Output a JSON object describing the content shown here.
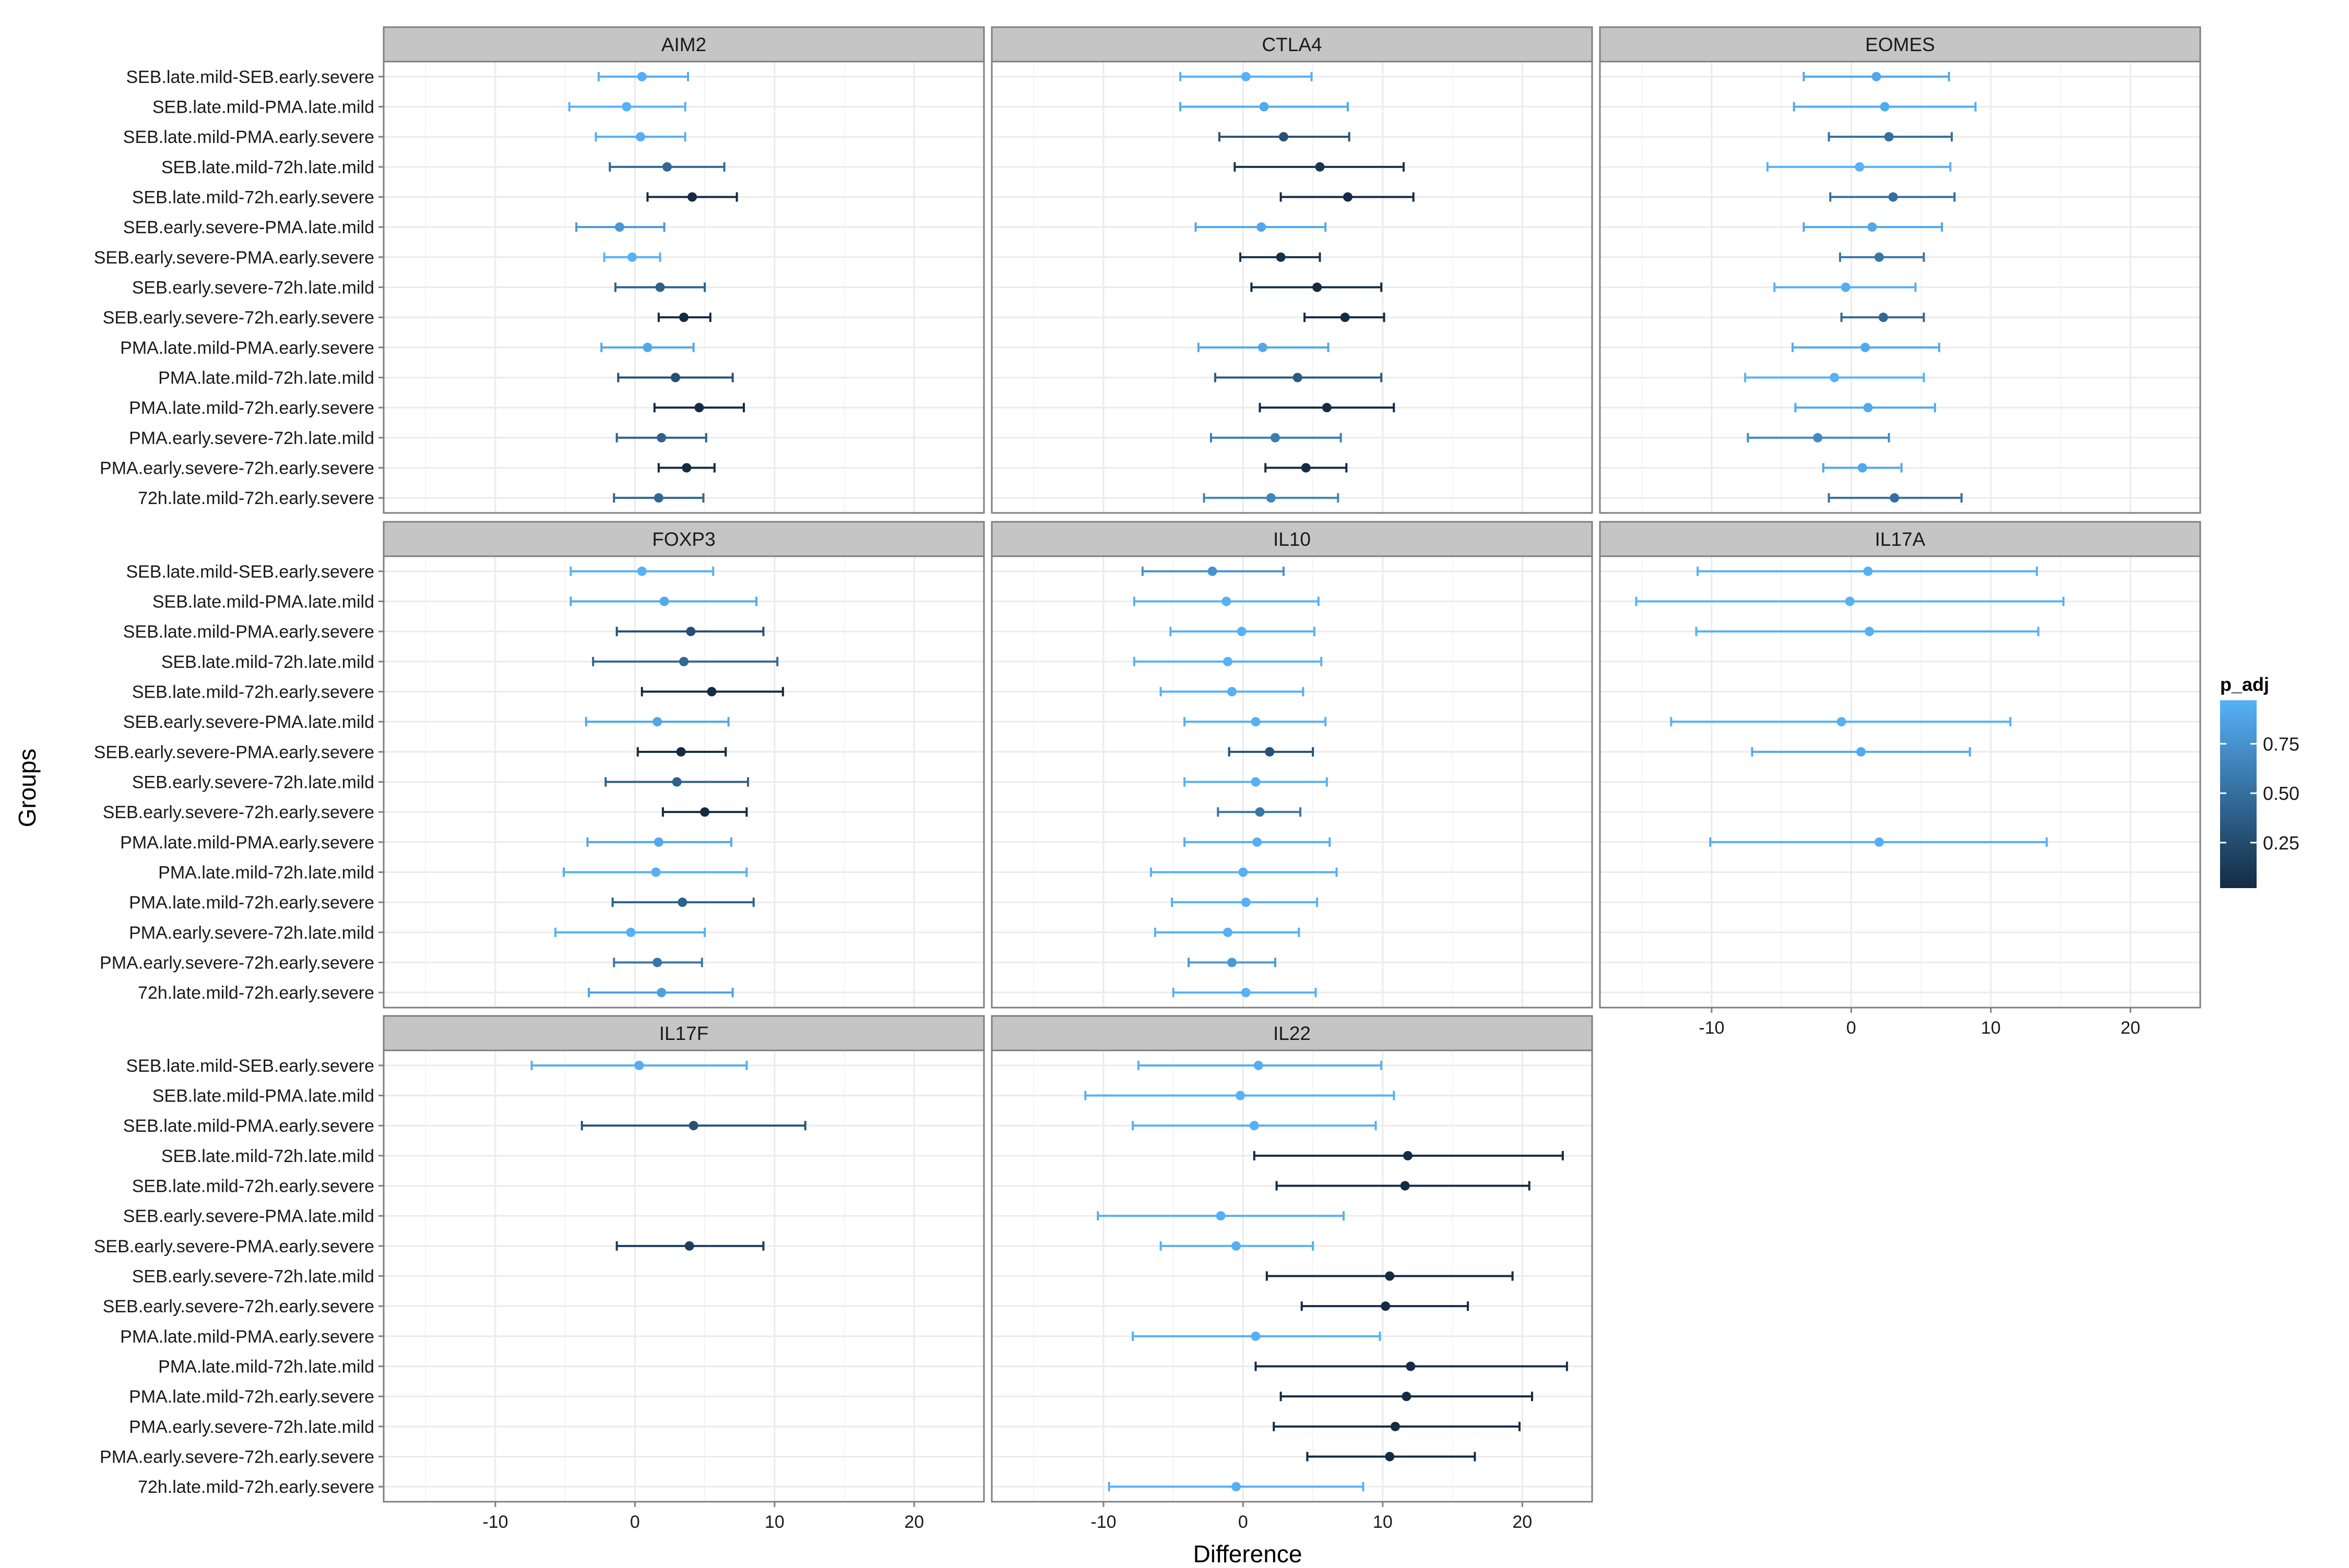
{
  "chart_data": {
    "type": "dotplot-errorbar-facets",
    "xlabel": "Difference",
    "ylabel": "Groups",
    "xlim": [
      -18,
      25
    ],
    "xticks": [
      -10,
      0,
      10,
      20
    ],
    "grid": true,
    "facet_layout": {
      "columns": 3,
      "rows": 3
    },
    "groups": [
      "SEB.late.mild-SEB.early.severe",
      "SEB.late.mild-PMA.late.mild",
      "SEB.late.mild-PMA.early.severe",
      "SEB.late.mild-72h.late.mild",
      "SEB.late.mild-72h.early.severe",
      "SEB.early.severe-PMA.late.mild",
      "SEB.early.severe-PMA.early.severe",
      "SEB.early.severe-72h.late.mild",
      "SEB.early.severe-72h.early.severe",
      "PMA.late.mild-PMA.early.severe",
      "PMA.late.mild-72h.late.mild",
      "PMA.late.mild-72h.early.severe",
      "PMA.early.severe-72h.late.mild",
      "PMA.early.severe-72h.early.severe",
      "72h.late.mild-72h.early.severe"
    ],
    "legend": {
      "title": "p_adj",
      "position": "right",
      "ticks": [
        "0.25",
        "0.50",
        "0.75"
      ],
      "tick_values": [
        0.25,
        0.5,
        0.75
      ],
      "range": [
        0.02,
        0.97
      ],
      "color_low": "#132B43",
      "color_high": "#56B1F7"
    },
    "panels": [
      {
        "name": "AIM2",
        "data": [
          {
            "diff": 0.5,
            "lwr": -2.6,
            "upr": 3.8,
            "p": 0.95
          },
          {
            "diff": -0.6,
            "lwr": -4.7,
            "upr": 3.6,
            "p": 0.97
          },
          {
            "diff": 0.4,
            "lwr": -2.8,
            "upr": 3.6,
            "p": 0.95
          },
          {
            "diff": 2.3,
            "lwr": -1.8,
            "upr": 6.4,
            "p": 0.45
          },
          {
            "diff": 4.1,
            "lwr": 0.9,
            "upr": 7.3,
            "p": 0.02
          },
          {
            "diff": -1.1,
            "lwr": -4.2,
            "upr": 2.1,
            "p": 0.8
          },
          {
            "diff": -0.2,
            "lwr": -2.2,
            "upr": 1.8,
            "p": 0.97
          },
          {
            "diff": 1.8,
            "lwr": -1.4,
            "upr": 5.0,
            "p": 0.4
          },
          {
            "diff": 3.5,
            "lwr": 1.7,
            "upr": 5.4,
            "p": 0.01
          },
          {
            "diff": 0.9,
            "lwr": -2.4,
            "upr": 4.2,
            "p": 0.9
          },
          {
            "diff": 2.9,
            "lwr": -1.2,
            "upr": 7.0,
            "p": 0.28
          },
          {
            "diff": 4.6,
            "lwr": 1.4,
            "upr": 7.8,
            "p": 0.02
          },
          {
            "diff": 1.9,
            "lwr": -1.3,
            "upr": 5.1,
            "p": 0.42
          },
          {
            "diff": 3.7,
            "lwr": 1.7,
            "upr": 5.7,
            "p": 0.01
          },
          {
            "diff": 1.7,
            "lwr": -1.5,
            "upr": 4.9,
            "p": 0.45
          }
        ]
      },
      {
        "name": "CTLA4",
        "data": [
          {
            "diff": 0.2,
            "lwr": -4.5,
            "upr": 4.9,
            "p": 0.97
          },
          {
            "diff": 1.5,
            "lwr": -4.5,
            "upr": 7.5,
            "p": 0.92
          },
          {
            "diff": 2.9,
            "lwr": -1.7,
            "upr": 7.6,
            "p": 0.3
          },
          {
            "diff": 5.5,
            "lwr": -0.6,
            "upr": 11.5,
            "p": 0.08
          },
          {
            "diff": 7.5,
            "lwr": 2.7,
            "upr": 12.2,
            "p": 0.01
          },
          {
            "diff": 1.3,
            "lwr": -3.4,
            "upr": 5.9,
            "p": 0.9
          },
          {
            "diff": 2.7,
            "lwr": -0.2,
            "upr": 5.5,
            "p": 0.06
          },
          {
            "diff": 5.3,
            "lwr": 0.6,
            "upr": 9.9,
            "p": 0.02
          },
          {
            "diff": 7.3,
            "lwr": 4.4,
            "upr": 10.1,
            "p": 0.01
          },
          {
            "diff": 1.4,
            "lwr": -3.2,
            "upr": 6.1,
            "p": 0.9
          },
          {
            "diff": 3.9,
            "lwr": -2.0,
            "upr": 9.9,
            "p": 0.35
          },
          {
            "diff": 6.0,
            "lwr": 1.2,
            "upr": 10.8,
            "p": 0.02
          },
          {
            "diff": 2.3,
            "lwr": -2.3,
            "upr": 7.0,
            "p": 0.6
          },
          {
            "diff": 4.5,
            "lwr": 1.6,
            "upr": 7.4,
            "p": 0.01
          },
          {
            "diff": 2.0,
            "lwr": -2.8,
            "upr": 6.8,
            "p": 0.65
          }
        ]
      },
      {
        "name": "EOMES",
        "data": [
          {
            "diff": 1.8,
            "lwr": -3.4,
            "upr": 7.0,
            "p": 0.9
          },
          {
            "diff": 2.4,
            "lwr": -4.1,
            "upr": 8.9,
            "p": 0.92
          },
          {
            "diff": 2.7,
            "lwr": -1.6,
            "upr": 7.2,
            "p": 0.5
          },
          {
            "diff": 0.6,
            "lwr": -6.0,
            "upr": 7.1,
            "p": 0.97
          },
          {
            "diff": 3.0,
            "lwr": -1.5,
            "upr": 7.4,
            "p": 0.5
          },
          {
            "diff": 1.5,
            "lwr": -3.4,
            "upr": 6.5,
            "p": 0.9
          },
          {
            "diff": 2.0,
            "lwr": -0.8,
            "upr": 5.2,
            "p": 0.55
          },
          {
            "diff": -0.4,
            "lwr": -5.5,
            "upr": 4.6,
            "p": 0.95
          },
          {
            "diff": 2.3,
            "lwr": -0.7,
            "upr": 5.2,
            "p": 0.45
          },
          {
            "diff": 1.0,
            "lwr": -4.2,
            "upr": 6.3,
            "p": 0.92
          },
          {
            "diff": -1.2,
            "lwr": -7.6,
            "upr": 5.2,
            "p": 0.97
          },
          {
            "diff": 1.2,
            "lwr": -4.0,
            "upr": 6.0,
            "p": 0.92
          },
          {
            "diff": -2.4,
            "lwr": -7.4,
            "upr": 2.7,
            "p": 0.7
          },
          {
            "diff": 0.8,
            "lwr": -2.0,
            "upr": 3.6,
            "p": 0.9
          },
          {
            "diff": 3.1,
            "lwr": -1.6,
            "upr": 7.9,
            "p": 0.5
          }
        ]
      },
      {
        "name": "FOXP3",
        "data": [
          {
            "diff": 0.5,
            "lwr": -4.6,
            "upr": 5.6,
            "p": 0.97
          },
          {
            "diff": 2.1,
            "lwr": -4.6,
            "upr": 8.7,
            "p": 0.92
          },
          {
            "diff": 4.0,
            "lwr": -1.3,
            "upr": 9.2,
            "p": 0.28
          },
          {
            "diff": 3.5,
            "lwr": -3.0,
            "upr": 10.2,
            "p": 0.45
          },
          {
            "diff": 5.5,
            "lwr": 0.5,
            "upr": 10.6,
            "p": 0.02
          },
          {
            "diff": 1.6,
            "lwr": -3.5,
            "upr": 6.7,
            "p": 0.9
          },
          {
            "diff": 3.3,
            "lwr": 0.2,
            "upr": 6.5,
            "p": 0.02
          },
          {
            "diff": 3.0,
            "lwr": -2.1,
            "upr": 8.1,
            "p": 0.4
          },
          {
            "diff": 5.0,
            "lwr": 2.0,
            "upr": 8.0,
            "p": 0.01
          },
          {
            "diff": 1.7,
            "lwr": -3.4,
            "upr": 6.9,
            "p": 0.9
          },
          {
            "diff": 1.5,
            "lwr": -5.1,
            "upr": 8.0,
            "p": 0.96
          },
          {
            "diff": 3.4,
            "lwr": -1.6,
            "upr": 8.5,
            "p": 0.4
          },
          {
            "diff": -0.3,
            "lwr": -5.7,
            "upr": 5.0,
            "p": 0.97
          },
          {
            "diff": 1.6,
            "lwr": -1.5,
            "upr": 4.8,
            "p": 0.55
          },
          {
            "diff": 1.9,
            "lwr": -3.3,
            "upr": 7.0,
            "p": 0.85
          }
        ]
      },
      {
        "name": "IL10",
        "data": [
          {
            "diff": -2.2,
            "lwr": -7.2,
            "upr": 2.9,
            "p": 0.75
          },
          {
            "diff": -1.2,
            "lwr": -7.8,
            "upr": 5.4,
            "p": 0.96
          },
          {
            "diff": -0.1,
            "lwr": -5.2,
            "upr": 5.1,
            "p": 0.97
          },
          {
            "diff": -1.1,
            "lwr": -7.8,
            "upr": 5.6,
            "p": 0.97
          },
          {
            "diff": -0.8,
            "lwr": -5.9,
            "upr": 4.3,
            "p": 0.96
          },
          {
            "diff": 0.9,
            "lwr": -4.2,
            "upr": 5.9,
            "p": 0.96
          },
          {
            "diff": 1.9,
            "lwr": -1.0,
            "upr": 5.0,
            "p": 0.3
          },
          {
            "diff": 0.9,
            "lwr": -4.2,
            "upr": 6.0,
            "p": 0.96
          },
          {
            "diff": 1.2,
            "lwr": -1.8,
            "upr": 4.1,
            "p": 0.55
          },
          {
            "diff": 1.0,
            "lwr": -4.2,
            "upr": 6.2,
            "p": 0.95
          },
          {
            "diff": 0.0,
            "lwr": -6.6,
            "upr": 6.7,
            "p": 0.97
          },
          {
            "diff": 0.2,
            "lwr": -5.1,
            "upr": 5.3,
            "p": 0.97
          },
          {
            "diff": -1.1,
            "lwr": -6.3,
            "upr": 4.0,
            "p": 0.96
          },
          {
            "diff": -0.8,
            "lwr": -3.9,
            "upr": 2.3,
            "p": 0.8
          },
          {
            "diff": 0.2,
            "lwr": -5.0,
            "upr": 5.2,
            "p": 0.97
          }
        ]
      },
      {
        "name": "IL17A",
        "data": [
          {
            "diff": 1.2,
            "lwr": -11.0,
            "upr": 13.3,
            "p": 0.96
          },
          {
            "diff": -0.1,
            "lwr": -15.4,
            "upr": 15.2,
            "p": 0.97
          },
          {
            "diff": 1.3,
            "lwr": -11.1,
            "upr": 13.4,
            "p": 0.96
          },
          null,
          null,
          {
            "diff": -0.7,
            "lwr": -12.9,
            "upr": 11.4,
            "p": 0.96
          },
          {
            "diff": 0.7,
            "lwr": -7.1,
            "upr": 8.5,
            "p": 0.92
          },
          null,
          null,
          {
            "diff": 2.0,
            "lwr": -10.1,
            "upr": 14.0,
            "p": 0.95
          },
          null,
          null,
          null,
          null,
          null
        ]
      },
      {
        "name": "IL17F",
        "data": [
          {
            "diff": 0.3,
            "lwr": -7.4,
            "upr": 8.0,
            "p": 0.95
          },
          null,
          {
            "diff": 4.2,
            "lwr": -3.8,
            "upr": 12.2,
            "p": 0.3
          },
          null,
          null,
          null,
          {
            "diff": 3.9,
            "lwr": -1.3,
            "upr": 9.2,
            "p": 0.15
          },
          null,
          null,
          null,
          null,
          null,
          null,
          null,
          null
        ]
      },
      {
        "name": "IL22",
        "data": [
          {
            "diff": 1.1,
            "lwr": -7.5,
            "upr": 9.9,
            "p": 0.95
          },
          {
            "diff": -0.2,
            "lwr": -11.3,
            "upr": 10.8,
            "p": 0.97
          },
          {
            "diff": 0.8,
            "lwr": -7.9,
            "upr": 9.5,
            "p": 0.96
          },
          {
            "diff": 11.8,
            "lwr": 0.8,
            "upr": 22.9,
            "p": 0.03
          },
          {
            "diff": 11.6,
            "lwr": 2.4,
            "upr": 20.5,
            "p": 0.02
          },
          {
            "diff": -1.6,
            "lwr": -10.4,
            "upr": 7.2,
            "p": 0.96
          },
          {
            "diff": -0.5,
            "lwr": -5.9,
            "upr": 5.0,
            "p": 0.96
          },
          {
            "diff": 10.5,
            "lwr": 1.7,
            "upr": 19.3,
            "p": 0.02
          },
          {
            "diff": 10.2,
            "lwr": 4.2,
            "upr": 16.1,
            "p": 0.01
          },
          {
            "diff": 0.9,
            "lwr": -7.9,
            "upr": 9.8,
            "p": 0.96
          },
          {
            "diff": 12.0,
            "lwr": 0.9,
            "upr": 23.2,
            "p": 0.03
          },
          {
            "diff": 11.7,
            "lwr": 2.7,
            "upr": 20.7,
            "p": 0.02
          },
          {
            "diff": 10.9,
            "lwr": 2.2,
            "upr": 19.8,
            "p": 0.02
          },
          {
            "diff": 10.5,
            "lwr": 4.6,
            "upr": 16.6,
            "p": 0.01
          },
          {
            "diff": -0.5,
            "lwr": -9.6,
            "upr": 8.6,
            "p": 0.96
          }
        ]
      }
    ]
  }
}
